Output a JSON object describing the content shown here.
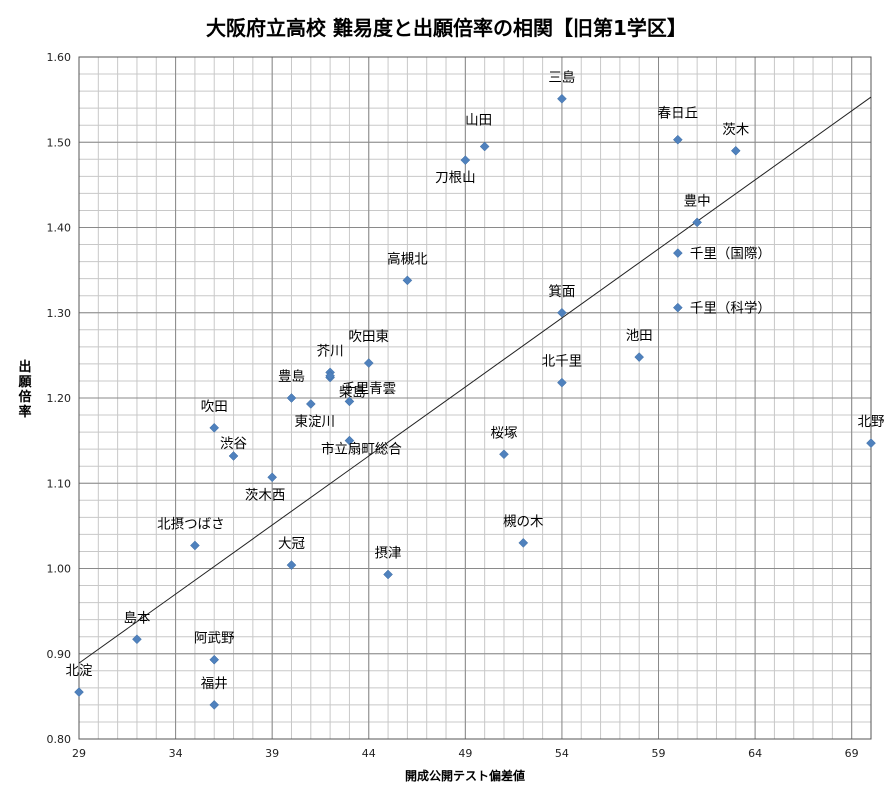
{
  "chart_data": {
    "type": "scatter",
    "title": "大阪府立高校 難易度と出願倍率の相関【旧第1学区】",
    "xlabel": "開成公開テスト偏差値",
    "ylabel": "出願倍率",
    "xlim": [
      29,
      70
    ],
    "ylim": [
      0.8,
      1.6
    ],
    "x_ticks": [
      "29",
      "34",
      "39",
      "44",
      "49",
      "54",
      "59",
      "64",
      "69"
    ],
    "y_ticks": [
      "0.80",
      "0.90",
      "1.00",
      "1.10",
      "1.20",
      "1.30",
      "1.40",
      "1.50",
      "1.60"
    ],
    "grid": true,
    "marker_color": "#4f81bd",
    "trendline": {
      "x": [
        29,
        70
      ],
      "y": [
        0.889,
        1.553
      ]
    },
    "points": [
      {
        "name": "三島",
        "x": 54,
        "y": 1.551
      },
      {
        "name": "春日丘",
        "x": 60,
        "y": 1.503
      },
      {
        "name": "茨木",
        "x": 63,
        "y": 1.49
      },
      {
        "name": "山田",
        "x": 50,
        "y": 1.495
      },
      {
        "name": "刀根山",
        "x": 49,
        "y": 1.479
      },
      {
        "name": "豊中",
        "x": 61,
        "y": 1.406
      },
      {
        "name": "千里（国際）",
        "x": 60,
        "y": 1.37
      },
      {
        "name": "高槻北",
        "x": 46,
        "y": 1.338
      },
      {
        "name": "箕面",
        "x": 54,
        "y": 1.3
      },
      {
        "name": "千里（科学）",
        "x": 60,
        "y": 1.306
      },
      {
        "name": "池田",
        "x": 58,
        "y": 1.248
      },
      {
        "name": "北千里",
        "x": 54,
        "y": 1.218
      },
      {
        "name": "吹田東",
        "x": 44,
        "y": 1.241
      },
      {
        "name": "芥川",
        "x": 42,
        "y": 1.23
      },
      {
        "name": "芥川2",
        "x": 42,
        "y": 1.224
      },
      {
        "name": "豊島",
        "x": 40,
        "y": 1.2
      },
      {
        "name": "東淀川",
        "x": 41,
        "y": 1.193
      },
      {
        "name": "柴島",
        "x": 43,
        "y": 1.196
      },
      {
        "name": "千里青雲",
        "x": 42,
        "y": 1.226
      },
      {
        "name": "吹田",
        "x": 36,
        "y": 1.165
      },
      {
        "name": "渋谷",
        "x": 37,
        "y": 1.132
      },
      {
        "name": "市立扇町総合",
        "x": 43,
        "y": 1.15
      },
      {
        "name": "茨木西",
        "x": 39,
        "y": 1.107
      },
      {
        "name": "桜塚",
        "x": 51,
        "y": 1.134
      },
      {
        "name": "北野",
        "x": 70,
        "y": 1.147
      },
      {
        "name": "北摂つばさ",
        "x": 35,
        "y": 1.027
      },
      {
        "name": "大冠",
        "x": 40,
        "y": 1.004
      },
      {
        "name": "摂津",
        "x": 45,
        "y": 0.993
      },
      {
        "name": "槻の木",
        "x": 52,
        "y": 1.03
      },
      {
        "name": "島本",
        "x": 32,
        "y": 0.917
      },
      {
        "name": "阿武野",
        "x": 36,
        "y": 0.893
      },
      {
        "name": "福井",
        "x": 36,
        "y": 0.84
      },
      {
        "name": "北淀",
        "x": 29,
        "y": 0.855
      }
    ],
    "labels": [
      "三島",
      "春日丘",
      "茨木",
      "山田",
      "刀根山",
      "豊中",
      "千里（国際）",
      "高槻北",
      "箕面",
      "千里（科学）",
      "池田",
      "北千里",
      "吹田東",
      "芥川",
      "豊島",
      "柴島",
      "東淀川",
      "千里青雲",
      "吹田",
      "渋谷",
      "市立扇町総合",
      "茨木西",
      "桜塚",
      "北野",
      "北摂つばさ",
      "大冠",
      "摂津",
      "槻の木",
      "島本",
      "阿武野",
      "福井",
      "北淀"
    ]
  }
}
